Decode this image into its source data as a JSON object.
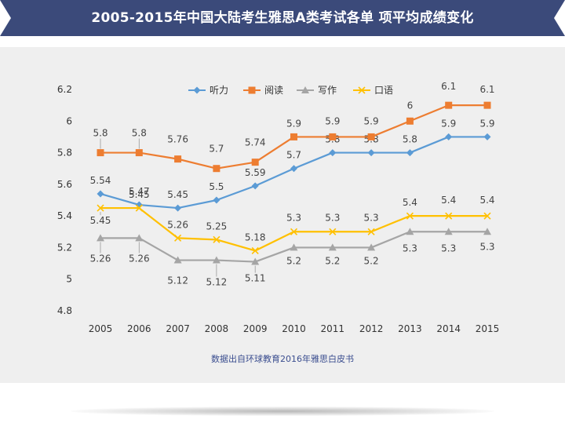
{
  "header": {
    "title": "2005-2015年中国大陆考生雅思A类考试各单 项平均成绩变化"
  },
  "footer": {
    "source": "数据出自环球教育2016年雅思白皮书"
  },
  "chart_data": {
    "type": "line",
    "title": "2005-2015年中国大陆考生雅思A类考试各单 项平均成绩变化",
    "xlabel": "",
    "ylabel": "",
    "categories": [
      "2005",
      "2006",
      "2007",
      "2008",
      "2009",
      "2010",
      "2011",
      "2012",
      "2013",
      "2014",
      "2015"
    ],
    "ylim": [
      4.8,
      6.2
    ],
    "yticks": [
      4.8,
      5,
      5.2,
      5.4,
      5.6,
      5.8,
      6,
      6.2
    ],
    "ytick_labels": [
      "4.8",
      "5",
      "5.2",
      "5.4",
      "5.6",
      "5.8",
      "6",
      "6.2"
    ],
    "grid": false,
    "legend_position": "top",
    "series": [
      {
        "name": "听力",
        "color": "#5b9bd5",
        "marker": "diamond",
        "values": [
          5.54,
          5.47,
          5.45,
          5.5,
          5.59,
          5.7,
          5.8,
          5.8,
          5.8,
          5.9,
          5.9
        ],
        "labels": [
          "5.54",
          "5.47",
          "5.45",
          "5.5",
          "5.59",
          "5.7",
          "5.8",
          "5.8",
          "5.8",
          "5.9",
          "5.9"
        ]
      },
      {
        "name": "阅读",
        "color": "#ed7d31",
        "marker": "square",
        "values": [
          5.8,
          5.8,
          5.76,
          5.7,
          5.74,
          5.9,
          5.9,
          5.9,
          6,
          6.1,
          6.1
        ],
        "labels": [
          "5.8",
          "5.8",
          "5.76",
          "5.7",
          "5.74",
          "5.9",
          "5.9",
          "5.9",
          "6",
          "6.1",
          "6.1"
        ]
      },
      {
        "name": "写作",
        "color": "#a5a5a5",
        "marker": "triangle",
        "values": [
          5.26,
          5.26,
          5.12,
          5.12,
          5.11,
          5.2,
          5.2,
          5.2,
          5.3,
          5.3,
          5.3
        ],
        "labels": [
          "5.26",
          "5.26",
          "5.12",
          "5.12",
          "5.11",
          "5.2",
          "5.2",
          "5.2",
          "5.3",
          "5.3",
          "5.3"
        ]
      },
      {
        "name": "口语",
        "color": "#ffc000",
        "marker": "x",
        "values": [
          5.45,
          5.45,
          5.26,
          5.25,
          5.18,
          5.3,
          5.3,
          5.3,
          5.4,
          5.4,
          5.4
        ],
        "labels": [
          "5.45",
          "5.45",
          "5.26",
          "5.25",
          "5.18",
          "5.3",
          "5.3",
          "5.3",
          "5.4",
          "5.4",
          "5.4"
        ]
      }
    ]
  }
}
